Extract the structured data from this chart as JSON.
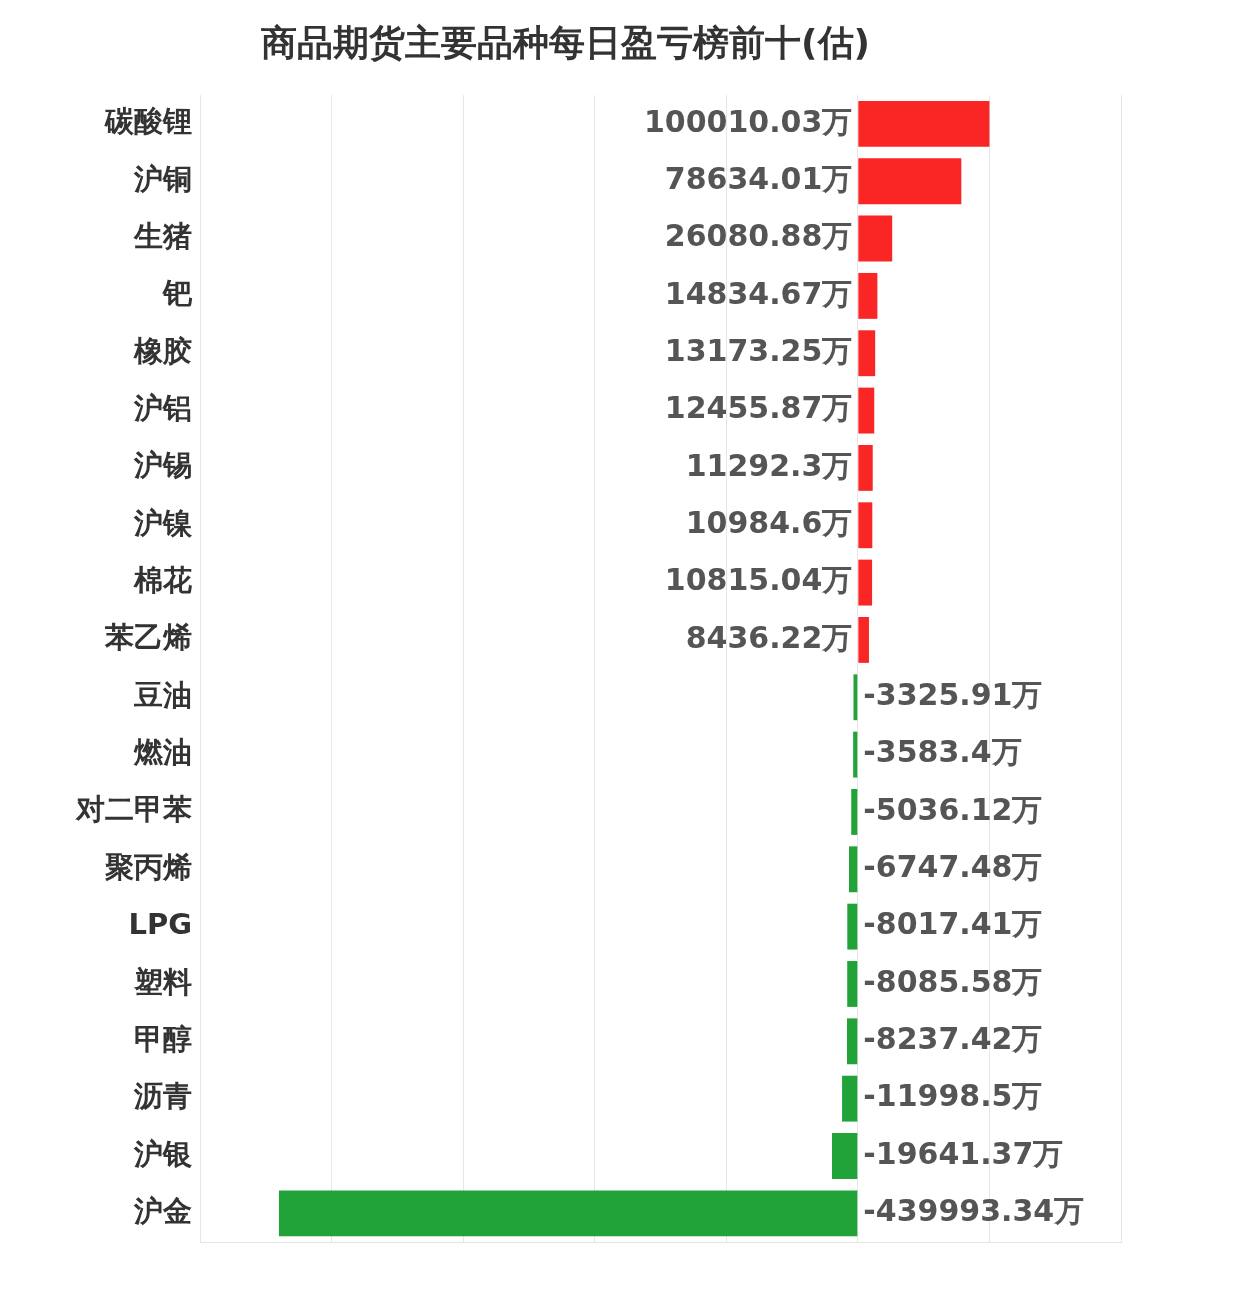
{
  "chart_data": {
    "type": "bar",
    "orientation": "horizontal",
    "title": "商品期货主要品种每日盈亏榜前十(估)",
    "categories": [
      "碳酸锂",
      "沪铜",
      "生猪",
      "钯",
      "橡胶",
      "沪铝",
      "沪锡",
      "沪镍",
      "棉花",
      "苯乙烯",
      "豆油",
      "燃油",
      "对二甲苯",
      "聚丙烯",
      "LPG",
      "塑料",
      "甲醇",
      "沥青",
      "沪银",
      "沪金"
    ],
    "values": [
      100010.03,
      78634.01,
      26080.88,
      14834.67,
      13173.25,
      12455.87,
      11292.3,
      10984.6,
      10815.04,
      8436.22,
      -3325.91,
      -3583.4,
      -5036.12,
      -6747.48,
      -8017.41,
      -8085.58,
      -8237.42,
      -11998.5,
      -19641.37,
      -439993.34
    ],
    "value_labels": [
      "100010.03万",
      "78634.01万",
      "26080.88万",
      "14834.67万",
      "13173.25万",
      "12455.87万",
      "11292.3万",
      "10984.6万",
      "10815.04万",
      "8436.22万",
      "-3325.91万",
      "-3583.4万",
      "-5036.12万",
      "-6747.48万",
      "-8017.41万",
      "-8085.58万",
      "-8237.42万",
      "-11998.5万",
      "-19641.37万",
      "-439993.34万"
    ],
    "colors": [
      "#fa2525",
      "#fa2525",
      "#fa2525",
      "#fa2525",
      "#fa2525",
      "#fa2525",
      "#fa2525",
      "#fa2525",
      "#fa2525",
      "#fa2525",
      "#21a33a",
      "#21a33a",
      "#21a33a",
      "#21a33a",
      "#21a33a",
      "#21a33a",
      "#21a33a",
      "#21a33a",
      "#21a33a",
      "#21a33a"
    ],
    "xlim": [
      -500000,
      200000
    ],
    "xticks": [
      {
        "value": -500000,
        "label": null
      },
      {
        "value": -400000,
        "label": null
      },
      {
        "value": -300000,
        "label": null
      },
      {
        "value": -200000,
        "label": null
      },
      {
        "value": -100000,
        "label": null
      },
      {
        "value": 0,
        "label": null
      },
      {
        "value": 100000,
        "label": null
      },
      {
        "value": 200000,
        "label": null
      }
    ],
    "grid": "x",
    "tick_labels": "y",
    "legend": false
  }
}
